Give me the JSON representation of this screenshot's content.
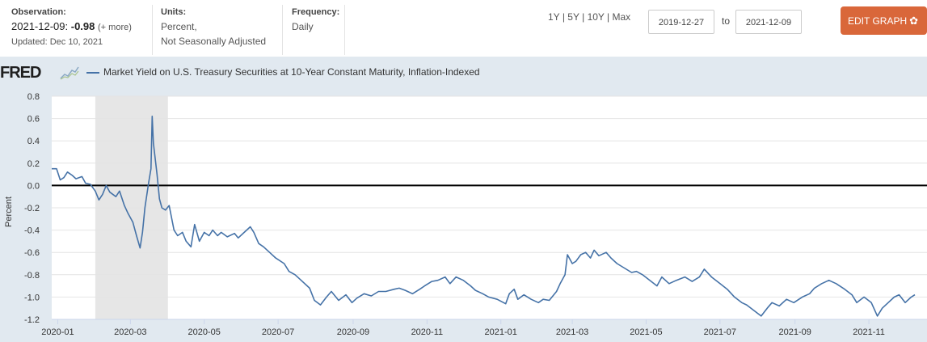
{
  "header": {
    "observation_label": "Observation:",
    "observation_date": "2021-12-09:",
    "observation_value": "-0.98",
    "observation_more": "(+ more)",
    "updated": "Updated: Dec 10, 2021",
    "units_label": "Units:",
    "units_line1": "Percent,",
    "units_line2": "Not Seasonally Adjusted",
    "frequency_label": "Frequency:",
    "frequency_value": "Daily"
  },
  "range_buttons": [
    "1Y",
    "5Y",
    "10Y",
    "Max"
  ],
  "range_sep": "|",
  "date_start": "2019-12-27",
  "date_to": "to",
  "date_end": "2021-12-09",
  "edit_button": "EDIT GRAPH",
  "logo_text": "FRED",
  "chart_data": {
    "type": "line",
    "series": [
      {
        "name": "Market Yield on U.S. Treasury Securities at 10-Year Constant Maturity, Inflation-Indexed",
        "color": "#4572a7",
        "points": [
          [
            "2019-12-27",
            0.15
          ],
          [
            "2019-12-31",
            0.15
          ],
          [
            "2020-01-03",
            0.05
          ],
          [
            "2020-01-06",
            0.07
          ],
          [
            "2020-01-09",
            0.12
          ],
          [
            "2020-01-13",
            0.09
          ],
          [
            "2020-01-16",
            0.06
          ],
          [
            "2020-01-21",
            0.08
          ],
          [
            "2020-01-24",
            0.02
          ],
          [
            "2020-01-28",
            0.01
          ],
          [
            "2020-02-01",
            -0.05
          ],
          [
            "2020-02-04",
            -0.13
          ],
          [
            "2020-02-07",
            -0.08
          ],
          [
            "2020-02-10",
            0.0
          ],
          [
            "2020-02-13",
            -0.06
          ],
          [
            "2020-02-18",
            -0.1
          ],
          [
            "2020-02-21",
            -0.05
          ],
          [
            "2020-02-25",
            -0.18
          ],
          [
            "2020-02-28",
            -0.25
          ],
          [
            "2020-03-03",
            -0.33
          ],
          [
            "2020-03-06",
            -0.45
          ],
          [
            "2020-03-09",
            -0.56
          ],
          [
            "2020-03-11",
            -0.42
          ],
          [
            "2020-03-13",
            -0.2
          ],
          [
            "2020-03-16",
            0.02
          ],
          [
            "2020-03-18",
            0.15
          ],
          [
            "2020-03-19",
            0.62
          ],
          [
            "2020-03-20",
            0.38
          ],
          [
            "2020-03-23",
            0.1
          ],
          [
            "2020-03-25",
            -0.12
          ],
          [
            "2020-03-27",
            -0.2
          ],
          [
            "2020-03-30",
            -0.22
          ],
          [
            "2020-04-02",
            -0.18
          ],
          [
            "2020-04-06",
            -0.4
          ],
          [
            "2020-04-09",
            -0.45
          ],
          [
            "2020-04-13",
            -0.42
          ],
          [
            "2020-04-16",
            -0.5
          ],
          [
            "2020-04-20",
            -0.55
          ],
          [
            "2020-04-23",
            -0.35
          ],
          [
            "2020-04-27",
            -0.5
          ],
          [
            "2020-05-01",
            -0.42
          ],
          [
            "2020-05-05",
            -0.45
          ],
          [
            "2020-05-08",
            -0.4
          ],
          [
            "2020-05-12",
            -0.45
          ],
          [
            "2020-05-15",
            -0.42
          ],
          [
            "2020-05-20",
            -0.46
          ],
          [
            "2020-05-26",
            -0.43
          ],
          [
            "2020-05-29",
            -0.47
          ],
          [
            "2020-06-03",
            -0.42
          ],
          [
            "2020-06-08",
            -0.37
          ],
          [
            "2020-06-11",
            -0.42
          ],
          [
            "2020-06-15",
            -0.52
          ],
          [
            "2020-06-19",
            -0.55
          ],
          [
            "2020-06-24",
            -0.6
          ],
          [
            "2020-06-29",
            -0.65
          ],
          [
            "2020-07-06",
            -0.7
          ],
          [
            "2020-07-10",
            -0.77
          ],
          [
            "2020-07-15",
            -0.8
          ],
          [
            "2020-07-20",
            -0.85
          ],
          [
            "2020-07-27",
            -0.92
          ],
          [
            "2020-07-31",
            -1.03
          ],
          [
            "2020-08-05",
            -1.07
          ],
          [
            "2020-08-10",
            -1.0
          ],
          [
            "2020-08-14",
            -0.95
          ],
          [
            "2020-08-20",
            -1.03
          ],
          [
            "2020-08-26",
            -0.98
          ],
          [
            "2020-08-31",
            -1.05
          ],
          [
            "2020-09-04",
            -1.01
          ],
          [
            "2020-09-10",
            -0.97
          ],
          [
            "2020-09-16",
            -0.99
          ],
          [
            "2020-09-22",
            -0.95
          ],
          [
            "2020-09-28",
            -0.95
          ],
          [
            "2020-10-05",
            -0.93
          ],
          [
            "2020-10-09",
            -0.92
          ],
          [
            "2020-10-14",
            -0.94
          ],
          [
            "2020-10-20",
            -0.97
          ],
          [
            "2020-10-26",
            -0.93
          ],
          [
            "2020-10-30",
            -0.9
          ],
          [
            "2020-11-05",
            -0.86
          ],
          [
            "2020-11-10",
            -0.85
          ],
          [
            "2020-11-16",
            -0.82
          ],
          [
            "2020-11-20",
            -0.88
          ],
          [
            "2020-11-25",
            -0.82
          ],
          [
            "2020-12-01",
            -0.85
          ],
          [
            "2020-12-07",
            -0.9
          ],
          [
            "2020-12-11",
            -0.94
          ],
          [
            "2020-12-17",
            -0.97
          ],
          [
            "2020-12-22",
            -1.0
          ],
          [
            "2020-12-29",
            -1.02
          ],
          [
            "2021-01-05",
            -1.06
          ],
          [
            "2021-01-08",
            -0.97
          ],
          [
            "2021-01-12",
            -0.93
          ],
          [
            "2021-01-15",
            -1.02
          ],
          [
            "2021-01-20",
            -0.98
          ],
          [
            "2021-01-26",
            -1.02
          ],
          [
            "2021-02-01",
            -1.05
          ],
          [
            "2021-02-05",
            -1.02
          ],
          [
            "2021-02-10",
            -1.03
          ],
          [
            "2021-02-16",
            -0.95
          ],
          [
            "2021-02-19",
            -0.88
          ],
          [
            "2021-02-23",
            -0.8
          ],
          [
            "2021-02-25",
            -0.62
          ],
          [
            "2021-03-01",
            -0.7
          ],
          [
            "2021-03-04",
            -0.68
          ],
          [
            "2021-03-08",
            -0.62
          ],
          [
            "2021-03-12",
            -0.6
          ],
          [
            "2021-03-16",
            -0.65
          ],
          [
            "2021-03-19",
            -0.58
          ],
          [
            "2021-03-23",
            -0.63
          ],
          [
            "2021-03-29",
            -0.6
          ],
          [
            "2021-04-02",
            -0.65
          ],
          [
            "2021-04-07",
            -0.7
          ],
          [
            "2021-04-13",
            -0.74
          ],
          [
            "2021-04-19",
            -0.78
          ],
          [
            "2021-04-23",
            -0.77
          ],
          [
            "2021-04-28",
            -0.8
          ],
          [
            "2021-05-04",
            -0.85
          ],
          [
            "2021-05-10",
            -0.9
          ],
          [
            "2021-05-14",
            -0.82
          ],
          [
            "2021-05-20",
            -0.88
          ],
          [
            "2021-05-26",
            -0.85
          ],
          [
            "2021-06-02",
            -0.82
          ],
          [
            "2021-06-08",
            -0.86
          ],
          [
            "2021-06-14",
            -0.82
          ],
          [
            "2021-06-18",
            -0.75
          ],
          [
            "2021-06-24",
            -0.82
          ],
          [
            "2021-06-30",
            -0.87
          ],
          [
            "2021-07-07",
            -0.93
          ],
          [
            "2021-07-13",
            -1.0
          ],
          [
            "2021-07-19",
            -1.05
          ],
          [
            "2021-07-23",
            -1.07
          ],
          [
            "2021-07-29",
            -1.12
          ],
          [
            "2021-08-04",
            -1.17
          ],
          [
            "2021-08-09",
            -1.1
          ],
          [
            "2021-08-13",
            -1.05
          ],
          [
            "2021-08-19",
            -1.08
          ],
          [
            "2021-08-25",
            -1.02
          ],
          [
            "2021-08-31",
            -1.05
          ],
          [
            "2021-09-07",
            -1.0
          ],
          [
            "2021-09-13",
            -0.97
          ],
          [
            "2021-09-17",
            -0.92
          ],
          [
            "2021-09-23",
            -0.88
          ],
          [
            "2021-09-29",
            -0.85
          ],
          [
            "2021-10-05",
            -0.88
          ],
          [
            "2021-10-12",
            -0.93
          ],
          [
            "2021-10-18",
            -0.98
          ],
          [
            "2021-10-22",
            -1.05
          ],
          [
            "2021-10-28",
            -1.0
          ],
          [
            "2021-11-03",
            -1.05
          ],
          [
            "2021-11-08",
            -1.17
          ],
          [
            "2021-11-12",
            -1.1
          ],
          [
            "2021-11-17",
            -1.05
          ],
          [
            "2021-11-22",
            -1.0
          ],
          [
            "2021-11-26",
            -0.98
          ],
          [
            "2021-12-01",
            -1.05
          ],
          [
            "2021-12-06",
            -1.0
          ],
          [
            "2021-12-09",
            -0.98
          ]
        ]
      }
    ],
    "ylabel": "Percent",
    "ylim": [
      -1.2,
      0.8
    ],
    "yticks": [
      "0.8",
      "0.6",
      "0.4",
      "0.2",
      "0.0",
      "-0.2",
      "-0.4",
      "-0.6",
      "-0.8",
      "-1.0",
      "-1.2"
    ],
    "xlim": [
      "2019-12-27",
      "2021-12-09"
    ],
    "xticks": [
      "2020-01",
      "2020-03",
      "2020-05",
      "2020-07",
      "2020-09",
      "2020-11",
      "2021-01",
      "2021-03",
      "2021-05",
      "2021-07",
      "2021-09",
      "2021-11"
    ],
    "recession": [
      "2020-02-01",
      "2020-04-01"
    ],
    "zero_line": true,
    "grid": "horizontal"
  }
}
